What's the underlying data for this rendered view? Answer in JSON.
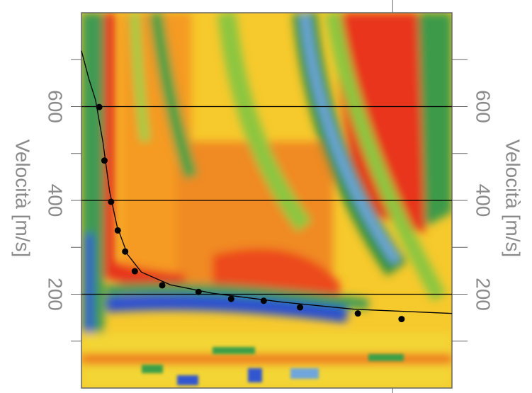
{
  "chart_data": {
    "type": "dispersion",
    "ylabel": "Velocità [m/s]",
    "ylim": [
      0,
      800
    ],
    "yticks": [
      200,
      400,
      600
    ],
    "yminorticks": [
      100,
      300,
      500,
      700
    ],
    "xlim": [
      0,
      50
    ],
    "xticks": [
      42
    ],
    "grid": true,
    "series": [
      {
        "color": "#000000",
        "style": "points",
        "x": [
          2.4,
          3.1,
          4.0,
          4.9,
          5.9,
          7.2,
          10.9,
          15.8,
          20.2,
          24.6,
          29.5,
          37.3,
          43.2
        ],
        "values": [
          599,
          485,
          397,
          336,
          291,
          249,
          219,
          205,
          190,
          186,
          172,
          159,
          147
        ]
      },
      {
        "color": "#000000",
        "style": "line",
        "x": [
          0,
          1.0,
          1.9,
          2.9,
          3.8,
          4.8,
          6.2,
          8.1,
          12.0,
          17.7,
          27.2,
          36.8,
          50
        ],
        "values": [
          719,
          659,
          614,
          524,
          419,
          345,
          285,
          247,
          220,
          202,
          183,
          168,
          159
        ]
      }
    ]
  }
}
